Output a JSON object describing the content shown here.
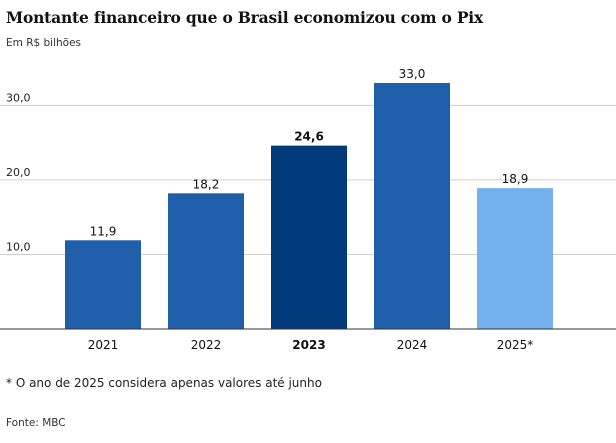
{
  "title": "Montante financeiro que o Brasil economizou com o Pix",
  "subtitle": "Em R$ bilhões",
  "note": "* O ano de 2025 considera apenas valores até junho",
  "source": "Fonte: MBC",
  "colors": {
    "default": "#1f5ea8",
    "highlight": "#003a7a",
    "partial": "#74b1ec",
    "grid": "#cfcfcf",
    "axis": "#333333"
  },
  "chart_data": {
    "type": "bar",
    "categories": [
      "2021",
      "2022",
      "2023",
      "2024",
      "2025*"
    ],
    "values": [
      11.9,
      18.2,
      24.6,
      33.0,
      18.9
    ],
    "value_labels": [
      "11,9",
      "18,2",
      "24,6",
      "33,0",
      "18,9"
    ],
    "bar_styles": [
      "default",
      "default",
      "highlight",
      "default",
      "partial"
    ],
    "bold_categories": [
      "2023"
    ],
    "yticks": [
      10,
      20,
      30
    ],
    "ytick_labels": [
      "10,0",
      "20,0",
      "30,0"
    ],
    "ylim": [
      0,
      33
    ],
    "grid": true
  }
}
